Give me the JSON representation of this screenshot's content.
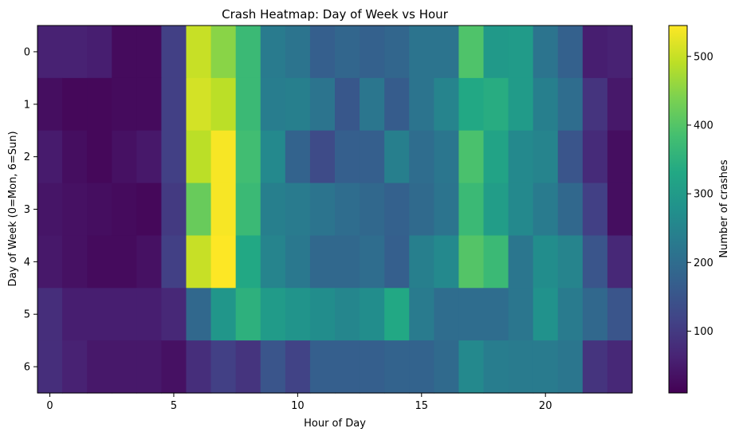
{
  "chart_data": {
    "type": "heatmap",
    "title": "Crash Heatmap: Day of Week vs Hour",
    "xlabel": "Hour of Day",
    "ylabel": "Day of Week (0=Mon, 6=Sun)",
    "x": [
      0,
      1,
      2,
      3,
      4,
      5,
      6,
      7,
      8,
      9,
      10,
      11,
      12,
      13,
      14,
      15,
      16,
      17,
      18,
      19,
      20,
      21,
      22,
      23
    ],
    "y": [
      0,
      1,
      2,
      3,
      4,
      5,
      6
    ],
    "x_ticks": [
      0,
      5,
      10,
      15,
      20
    ],
    "y_ticks": [
      0,
      1,
      2,
      3,
      4,
      5,
      6
    ],
    "values": [
      [
        60,
        60,
        55,
        25,
        25,
        110,
        500,
        450,
        370,
        230,
        215,
        170,
        185,
        175,
        185,
        215,
        215,
        395,
        295,
        300,
        215,
        175,
        55,
        60
      ],
      [
        30,
        20,
        20,
        25,
        25,
        110,
        510,
        490,
        370,
        235,
        240,
        215,
        155,
        220,
        165,
        215,
        250,
        330,
        340,
        300,
        240,
        200,
        90,
        45
      ],
      [
        50,
        30,
        20,
        35,
        45,
        110,
        490,
        540,
        380,
        260,
        180,
        130,
        170,
        170,
        240,
        200,
        220,
        390,
        320,
        260,
        250,
        150,
        75,
        30
      ],
      [
        40,
        35,
        30,
        25,
        20,
        100,
        420,
        540,
        370,
        240,
        230,
        215,
        200,
        190,
        175,
        195,
        215,
        370,
        305,
        260,
        230,
        190,
        110,
        30
      ],
      [
        45,
        35,
        25,
        25,
        35,
        110,
        500,
        545,
        330,
        250,
        225,
        190,
        190,
        200,
        170,
        240,
        260,
        400,
        370,
        220,
        270,
        250,
        150,
        70
      ],
      [
        80,
        55,
        55,
        55,
        55,
        70,
        190,
        290,
        350,
        300,
        285,
        270,
        255,
        270,
        330,
        230,
        200,
        200,
        200,
        220,
        280,
        230,
        190,
        150
      ],
      [
        80,
        60,
        45,
        45,
        45,
        35,
        80,
        110,
        90,
        150,
        115,
        170,
        170,
        170,
        180,
        180,
        195,
        260,
        235,
        230,
        230,
        220,
        90,
        70
      ]
    ],
    "colorbar": {
      "label": "Number of crashes",
      "min": 10,
      "max": 545,
      "ticks": [
        100,
        200,
        300,
        400,
        500
      ]
    },
    "colormap": "viridis",
    "grid": false
  }
}
